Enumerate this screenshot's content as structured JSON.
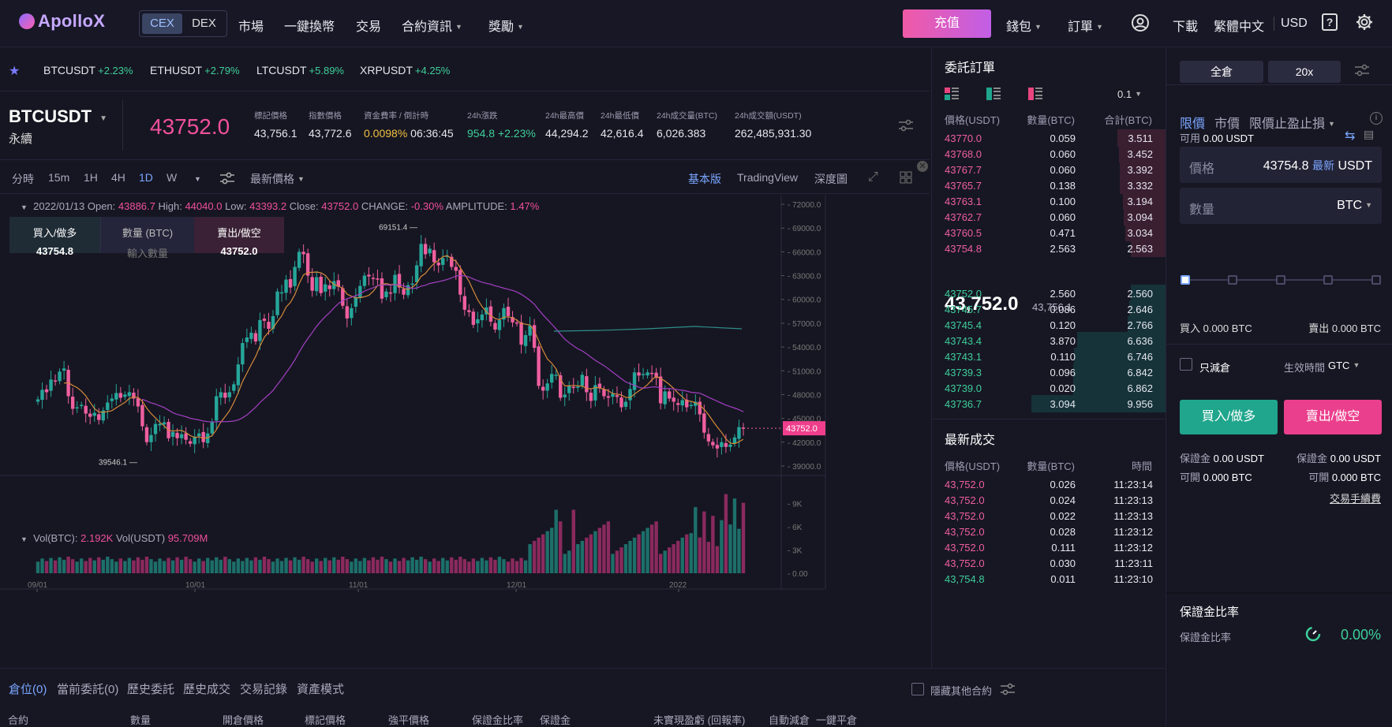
{
  "nav": {
    "logo": "ApolloX",
    "seg": [
      "CEX",
      "DEX"
    ],
    "items": [
      "市場",
      "一鍵換幣",
      "交易",
      "合約資訊",
      "獎勵"
    ],
    "deposit": "充值",
    "wallet": "錢包",
    "orders": "訂單",
    "download": "下載",
    "language": "繁體中文",
    "currency": "USD"
  },
  "ticker": [
    {
      "sym": "BTCUSDT",
      "chg": "+2.23%"
    },
    {
      "sym": "ETHUSDT",
      "chg": "+2.79%"
    },
    {
      "sym": "LTCUSDT",
      "chg": "+5.89%"
    },
    {
      "sym": "XRPUSDT",
      "chg": "+4.25%"
    }
  ],
  "symbol": {
    "name": "BTCUSDT",
    "type": "永續",
    "last": "43752.0",
    "stats": [
      {
        "label": "標記價格",
        "value": "43,756.1"
      },
      {
        "label": "指數價格",
        "value": "43,772.6"
      },
      {
        "label": "資金費率 / 倒計時",
        "value": "0.0098%",
        "value2": "06:36:45"
      },
      {
        "label": "24h漲跌",
        "value": "954.8",
        "value2": "+2.23%"
      },
      {
        "label": "24h最高價",
        "value": "44,294.2"
      },
      {
        "label": "24h最低價",
        "value": "42,616.4"
      },
      {
        "label": "24h成交量(BTC)",
        "value": "6,026.383"
      },
      {
        "label": "24h成交額(USDT)",
        "value": "262,485,931.30"
      }
    ]
  },
  "toolbar": {
    "intervals": [
      "分時",
      "15m",
      "1H",
      "4H",
      "1D",
      "W"
    ],
    "active": "1D",
    "price_type": "最新價格",
    "views": [
      "基本版",
      "TradingView",
      "深度圖"
    ]
  },
  "chart_data": {
    "type": "candlestick",
    "ohlc_label": {
      "date": "2022/01/13",
      "open": "43886.7",
      "high": "44040.0",
      "low": "43393.2",
      "close": "43752.0",
      "change": "-0.30%",
      "amplitude": "1.47%"
    },
    "y_ticks": [
      "72000.0",
      "69000.0",
      "66000.0",
      "63000.0",
      "60000.0",
      "57000.0",
      "54000.0",
      "51000.0",
      "48000.0",
      "45000.0",
      "42000.0",
      "39000.0"
    ],
    "ylim": [
      37800,
      73200
    ],
    "x_ticks": [
      "09/01",
      "10/01",
      "11/01",
      "12/01",
      "2022"
    ],
    "high_mark": "69151.4",
    "low_mark": "39546.1",
    "current_price": "43752.0",
    "closes": [
      47400,
      48600,
      48300,
      49900,
      49700,
      50900,
      51300,
      47800,
      46200,
      46400,
      46700,
      45600,
      45200,
      45700,
      44800,
      46000,
      47000,
      47500,
      48200,
      47600,
      48000,
      48300,
      47500,
      46500,
      44000,
      42000,
      42900,
      44300,
      44300,
      44500,
      42500,
      43300,
      42500,
      43000,
      42300,
      41800,
      42700,
      43100,
      42000,
      43100,
      44600,
      47800,
      48300,
      47600,
      48300,
      49300,
      51800,
      54500,
      55200,
      55800,
      54700,
      57400,
      57300,
      56300,
      57900,
      61000,
      60900,
      62500,
      61500,
      64100,
      66000,
      65700,
      63000,
      61100,
      62800,
      60800,
      61900,
      61300,
      62300,
      61600,
      59200,
      57600,
      58900,
      60300,
      61700,
      63000,
      62900,
      62700,
      62600,
      60100,
      61000,
      60800,
      63100,
      61500,
      60600,
      61800,
      62000,
      64300,
      67000,
      65700,
      66400,
      64700,
      64300,
      65200,
      65500,
      64100,
      63600,
      60600,
      58700,
      58400,
      56800,
      57500,
      58100,
      59000,
      57200,
      56200,
      57400,
      58900,
      57900,
      57100,
      57000,
      54300,
      55500,
      56700,
      53900,
      49100,
      48500,
      49400,
      50600,
      50500,
      47600,
      48000,
      49100,
      48900,
      49000,
      50500,
      48300,
      47200,
      49200,
      48800,
      47800,
      47600,
      48100,
      47700,
      46400,
      47100,
      48700,
      50800,
      50400,
      50600,
      50800,
      50700,
      50100,
      46900,
      48400,
      47500,
      47100,
      46700,
      47300,
      46400,
      46700,
      47100,
      45500,
      43200,
      42100,
      41600,
      41200,
      42000,
      41400,
      41700,
      42600,
      43900,
      43752
    ],
    "volume_labels": [
      "9K",
      "6K",
      "3K",
      "0.00"
    ],
    "vol_legend": {
      "btc_label": "Vol(BTC):",
      "btc": "2.192K",
      "usdt_label": "Vol(USDT)",
      "usdt": "95.709M"
    },
    "order_panel": {
      "buy": "買入/做多",
      "buy_price": "43754.8",
      "qty": "數量 (BTC)",
      "qty_ph": "輸入數量",
      "sell": "賣出/做空",
      "sell_price": "43752.0"
    }
  },
  "orderbook": {
    "title": "委託訂單",
    "step": "0.1",
    "headers": [
      "價格(USDT)",
      "數量(BTC)",
      "合計(BTC)"
    ],
    "asks": [
      {
        "p": "43770.0",
        "a": "0.059",
        "t": "3.511",
        "f": 0.36
      },
      {
        "p": "43768.0",
        "a": "0.060",
        "t": "3.452",
        "f": 0.35
      },
      {
        "p": "43767.7",
        "a": "0.060",
        "t": "3.392",
        "f": 0.34
      },
      {
        "p": "43765.7",
        "a": "0.138",
        "t": "3.332",
        "f": 0.34
      },
      {
        "p": "43763.1",
        "a": "0.100",
        "t": "3.194",
        "f": 0.32
      },
      {
        "p": "43762.7",
        "a": "0.060",
        "t": "3.094",
        "f": 0.31
      },
      {
        "p": "43760.5",
        "a": "0.471",
        "t": "3.034",
        "f": 0.3
      },
      {
        "p": "43754.8",
        "a": "2.563",
        "t": "2.563",
        "f": 0.26
      }
    ],
    "mid": "43,752.0",
    "mark": "43,756.1",
    "bids": [
      {
        "p": "43752.0",
        "a": "2.560",
        "t": "2.560",
        "f": 0.26
      },
      {
        "p": "43745.7",
        "a": "0.086",
        "t": "2.646",
        "f": 0.27
      },
      {
        "p": "43745.4",
        "a": "0.120",
        "t": "2.766",
        "f": 0.28
      },
      {
        "p": "43743.4",
        "a": "3.870",
        "t": "6.636",
        "f": 0.66
      },
      {
        "p": "43743.1",
        "a": "0.110",
        "t": "6.746",
        "f": 0.68
      },
      {
        "p": "43739.3",
        "a": "0.096",
        "t": "6.842",
        "f": 0.69
      },
      {
        "p": "43739.0",
        "a": "0.020",
        "t": "6.862",
        "f": 0.69
      },
      {
        "p": "43736.7",
        "a": "3.094",
        "t": "9.956",
        "f": 1.0
      }
    ]
  },
  "trades": {
    "title": "最新成交",
    "headers": [
      "價格(USDT)",
      "數量(BTC)",
      "時間"
    ],
    "rows": [
      {
        "p": "43,752.0",
        "a": "0.026",
        "t": "11:23:14",
        "side": "sell"
      },
      {
        "p": "43,752.0",
        "a": "0.024",
        "t": "11:23:13",
        "side": "sell"
      },
      {
        "p": "43,752.0",
        "a": "0.022",
        "t": "11:23:13",
        "side": "sell"
      },
      {
        "p": "43,752.0",
        "a": "0.028",
        "t": "11:23:12",
        "side": "sell"
      },
      {
        "p": "43,752.0",
        "a": "0.111",
        "t": "11:23:12",
        "side": "sell"
      },
      {
        "p": "43,752.0",
        "a": "0.030",
        "t": "11:23:11",
        "side": "sell"
      },
      {
        "p": "43,754.8",
        "a": "0.011",
        "t": "11:23:10",
        "side": "buy"
      }
    ]
  },
  "form": {
    "margin_mode": "全倉",
    "leverage": "20x",
    "tabs": [
      "限價",
      "市價",
      "限價止盈止損"
    ],
    "available_label": "可用",
    "available": "0.00 USDT",
    "price_label": "價格",
    "price": "43754.8",
    "latest": "最新",
    "price_unit": "USDT",
    "qty_label": "數量",
    "qty_unit": "BTC",
    "buy_amt": "買入 0.000 BTC",
    "sell_amt": "賣出 0.000 BTC",
    "reduce_only": "只減倉",
    "tif_label": "生效時間",
    "tif": "GTC",
    "buy_btn": "買入/做多",
    "sell_btn": "賣出/做空",
    "margin_label": "保證金",
    "margin_value": "0.00 USDT",
    "open_label": "可開",
    "open_value": "0.000 BTC",
    "fees": "交易手續費",
    "ratio_title": "保證金比率",
    "ratio_label": "保證金比率",
    "ratio": "0.00%"
  },
  "bottom": {
    "tabs": [
      "倉位(0)",
      "當前委託(0)",
      "歷史委託",
      "歷史成交",
      "交易記錄",
      "資產模式"
    ],
    "hide_other": "隱藏其他合約",
    "headers": [
      "合約",
      "數量",
      "開倉價格",
      "標記價格",
      "強平價格",
      "保證金比率",
      "保證金",
      "未實現盈虧 (回報率)",
      "自動減倉",
      "一鍵平倉"
    ]
  },
  "colors": {
    "up": "#26a69a",
    "down": "#ef5fa0",
    "accent": "#7aa6ff"
  }
}
